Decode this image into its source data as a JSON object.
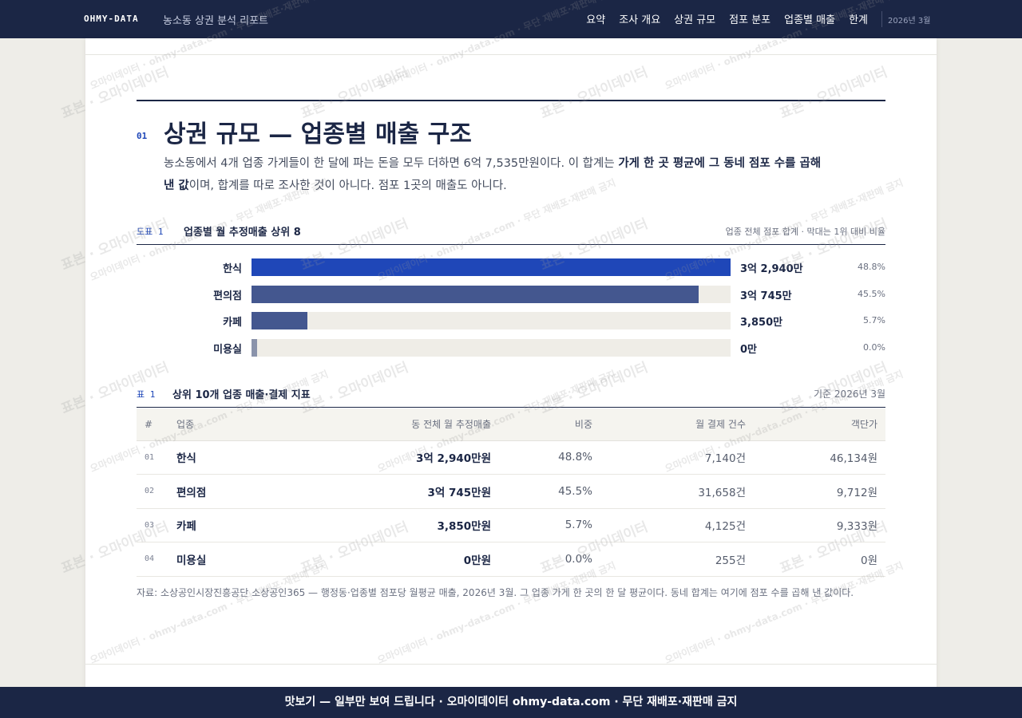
{
  "header": {
    "brand": "OHMY-DATA",
    "report_title": "농소동 상권 분석 리포트",
    "nav": [
      "요약",
      "조사 개요",
      "상권 규모",
      "점포 분포",
      "업종별 매출",
      "한계"
    ],
    "date": "2026년 3월"
  },
  "section": {
    "number": "01",
    "title": "상권 규모 — 업종별 매출 구조",
    "lead_part1": "농소동에서 4개 업종 가게들이 한 달에 파는 돈을 모두 더하면 6억 7,535만원이다. 이 합계는 ",
    "lead_bold": "가게 한 곳 평균에 그 동네 점포 수를 곱해 낸 값",
    "lead_part2": "이며, 합계를 따로 조사한 것이 아니다. 점포 1곳의 매출도 아니다."
  },
  "figure": {
    "label": "도표 1",
    "title": "업종별 월 추정매출 상위 8",
    "note": "업종 전체 점포 합계 · 막대는 1위 대비 비율"
  },
  "chart_data": {
    "type": "bar",
    "categories": [
      "한식",
      "편의점",
      "카페",
      "미용실"
    ],
    "values": [
      32940,
      30745,
      3850,
      0
    ],
    "value_labels": [
      "3억 2,940만",
      "3억 745만",
      "3,850만",
      "0만"
    ],
    "pct_labels": [
      "48.8%",
      "45.5%",
      "5.7%",
      "0.0%"
    ],
    "colors": [
      "#1f47b8",
      "#44578f",
      "#44578f",
      "#8a93ab"
    ],
    "title": "업종별 월 추정매출 상위 8"
  },
  "table": {
    "label": "표 1",
    "title": "상위 10개 업종 매출·결제 지표",
    "note": "기준 2026년 3월",
    "columns": [
      "#",
      "업종",
      "동 전체 월 추정매출",
      "비중",
      "월 결제 건수",
      "객단가"
    ],
    "rows": [
      [
        "01",
        "한식",
        "3억 2,940만원",
        "48.8%",
        "7,140건",
        "46,134원"
      ],
      [
        "02",
        "편의점",
        "3억 745만원",
        "45.5%",
        "31,658건",
        "9,712원"
      ],
      [
        "03",
        "카페",
        "3,850만원",
        "5.7%",
        "4,125건",
        "9,333원"
      ],
      [
        "04",
        "미용실",
        "0만원",
        "0.0%",
        "255건",
        "0원"
      ]
    ]
  },
  "source": "자료: 소상공인시장진흥공단 소상공인365 — 행정동·업종별 점포당 월평균 매출, 2026년 3월. 그 업종 가게 한 곳의 한 달 평균이다. 동네 합계는 여기에 점포 수를 곱해 낸 값이다.",
  "banner": "맛보기 — 일부만 보여 드립니다 · 오마이데이터 ohmy-data.com · 무단 재배포·재판매 금지",
  "watermark": {
    "primary": "표본 · 오마이데이터",
    "secondary": "오마이데이터 · ohmy-data.com · 무단 재배포·재판매 금지"
  }
}
